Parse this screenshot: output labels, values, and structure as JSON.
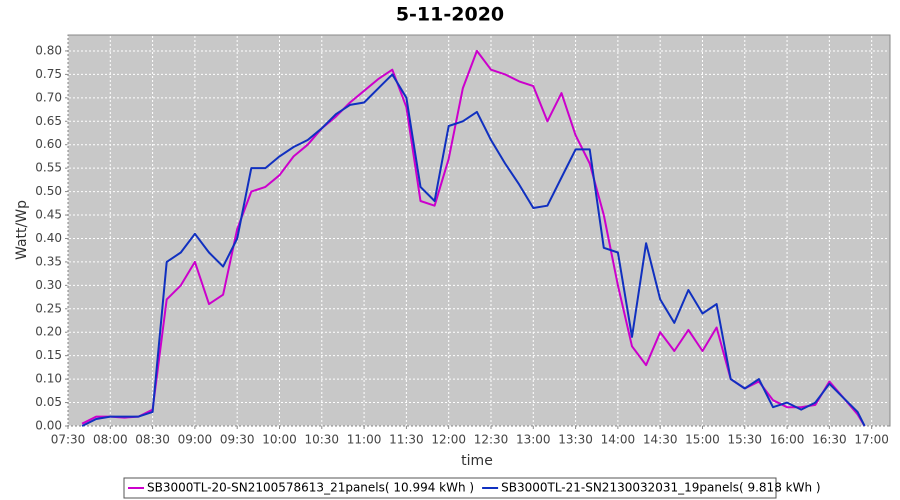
{
  "chart_data": {
    "type": "line",
    "title": "5-11-2020",
    "x_label": "time",
    "y_label": "Watt/Wp",
    "x": [
      "07:40",
      "07:50",
      "08:00",
      "08:10",
      "08:20",
      "08:30",
      "08:40",
      "08:50",
      "09:00",
      "09:10",
      "09:20",
      "09:30",
      "09:40",
      "09:50",
      "10:00",
      "10:10",
      "10:20",
      "10:30",
      "10:40",
      "10:50",
      "11:00",
      "11:10",
      "11:20",
      "11:30",
      "11:40",
      "11:50",
      "12:00",
      "12:10",
      "12:20",
      "12:30",
      "12:40",
      "12:50",
      "13:00",
      "13:10",
      "13:20",
      "13:30",
      "13:40",
      "13:50",
      "14:00",
      "14:10",
      "14:20",
      "14:30",
      "14:40",
      "14:50",
      "15:00",
      "15:10",
      "15:20",
      "15:30",
      "15:40",
      "15:50",
      "16:00",
      "16:10",
      "16:20",
      "16:30",
      "16:40",
      "16:50",
      "16:55"
    ],
    "series": [
      {
        "name": "SB3000TL-20-SN2100578613_21panels( 10.994 kWh )",
        "color": "#cc00cc",
        "values": [
          0.005,
          0.02,
          0.02,
          0.018,
          0.02,
          0.035,
          0.27,
          0.3,
          0.35,
          0.26,
          0.28,
          0.42,
          0.5,
          0.51,
          0.535,
          0.575,
          0.6,
          0.635,
          0.66,
          0.69,
          0.715,
          0.74,
          0.76,
          0.68,
          0.48,
          0.47,
          0.57,
          0.72,
          0.8,
          0.76,
          0.75,
          0.735,
          0.725,
          0.65,
          0.71,
          0.62,
          0.56,
          0.45,
          0.3,
          0.17,
          0.13,
          0.2,
          0.16,
          0.205,
          0.16,
          0.21,
          0.1,
          0.08,
          0.095,
          0.055,
          0.04,
          0.04,
          0.045,
          0.095,
          0.06,
          0.025,
          0.0
        ]
      },
      {
        "name": "SB3000TL-21-SN2130032031_19panels( 9.818 kWh )",
        "color": "#1030c0",
        "values": [
          0.0,
          0.015,
          0.02,
          0.02,
          0.02,
          0.03,
          0.35,
          0.37,
          0.41,
          0.37,
          0.34,
          0.4,
          0.55,
          0.55,
          0.575,
          0.595,
          0.61,
          0.635,
          0.665,
          0.685,
          0.69,
          0.72,
          0.75,
          0.7,
          0.51,
          0.48,
          0.64,
          0.65,
          0.67,
          0.61,
          0.56,
          0.515,
          0.465,
          0.47,
          0.53,
          0.59,
          0.59,
          0.38,
          0.37,
          0.19,
          0.39,
          0.27,
          0.22,
          0.29,
          0.24,
          0.26,
          0.1,
          0.08,
          0.1,
          0.04,
          0.05,
          0.035,
          0.05,
          0.09,
          0.06,
          0.03,
          0.0
        ]
      }
    ],
    "xlim": [
      "07:30",
      "17:13"
    ],
    "xticks": [
      "07:30",
      "08:00",
      "08:30",
      "09:00",
      "09:30",
      "10:00",
      "10:30",
      "11:00",
      "11:30",
      "12:00",
      "12:30",
      "13:00",
      "13:30",
      "14:00",
      "14:30",
      "15:00",
      "15:30",
      "16:00",
      "16:30",
      "17:00"
    ],
    "ylim": [
      0,
      0.834
    ],
    "yticks": [
      {
        "value": 0,
        "label": "0.00"
      },
      {
        "value": 0.05,
        "label": "0.05"
      },
      {
        "value": 0.1,
        "label": "0.10"
      },
      {
        "value": 0.15,
        "label": "0.15"
      },
      {
        "value": 0.2,
        "label": "0.20"
      },
      {
        "value": 0.25,
        "label": "0.25"
      },
      {
        "value": 0.3,
        "label": "0.30"
      },
      {
        "value": 0.35,
        "label": "0.35"
      },
      {
        "value": 0.4,
        "label": "0.40"
      },
      {
        "value": 0.45,
        "label": "0.45"
      },
      {
        "value": 0.5,
        "label": "0.50"
      },
      {
        "value": 0.55,
        "label": "0.55"
      },
      {
        "value": 0.6,
        "label": "0.60"
      },
      {
        "value": 0.65,
        "label": "0.65"
      },
      {
        "value": 0.7,
        "label": "0.70"
      },
      {
        "value": 0.75,
        "label": "0.75"
      },
      {
        "value": 0.8,
        "label": "0.80"
      }
    ],
    "grid": true,
    "legend": "bottom"
  }
}
